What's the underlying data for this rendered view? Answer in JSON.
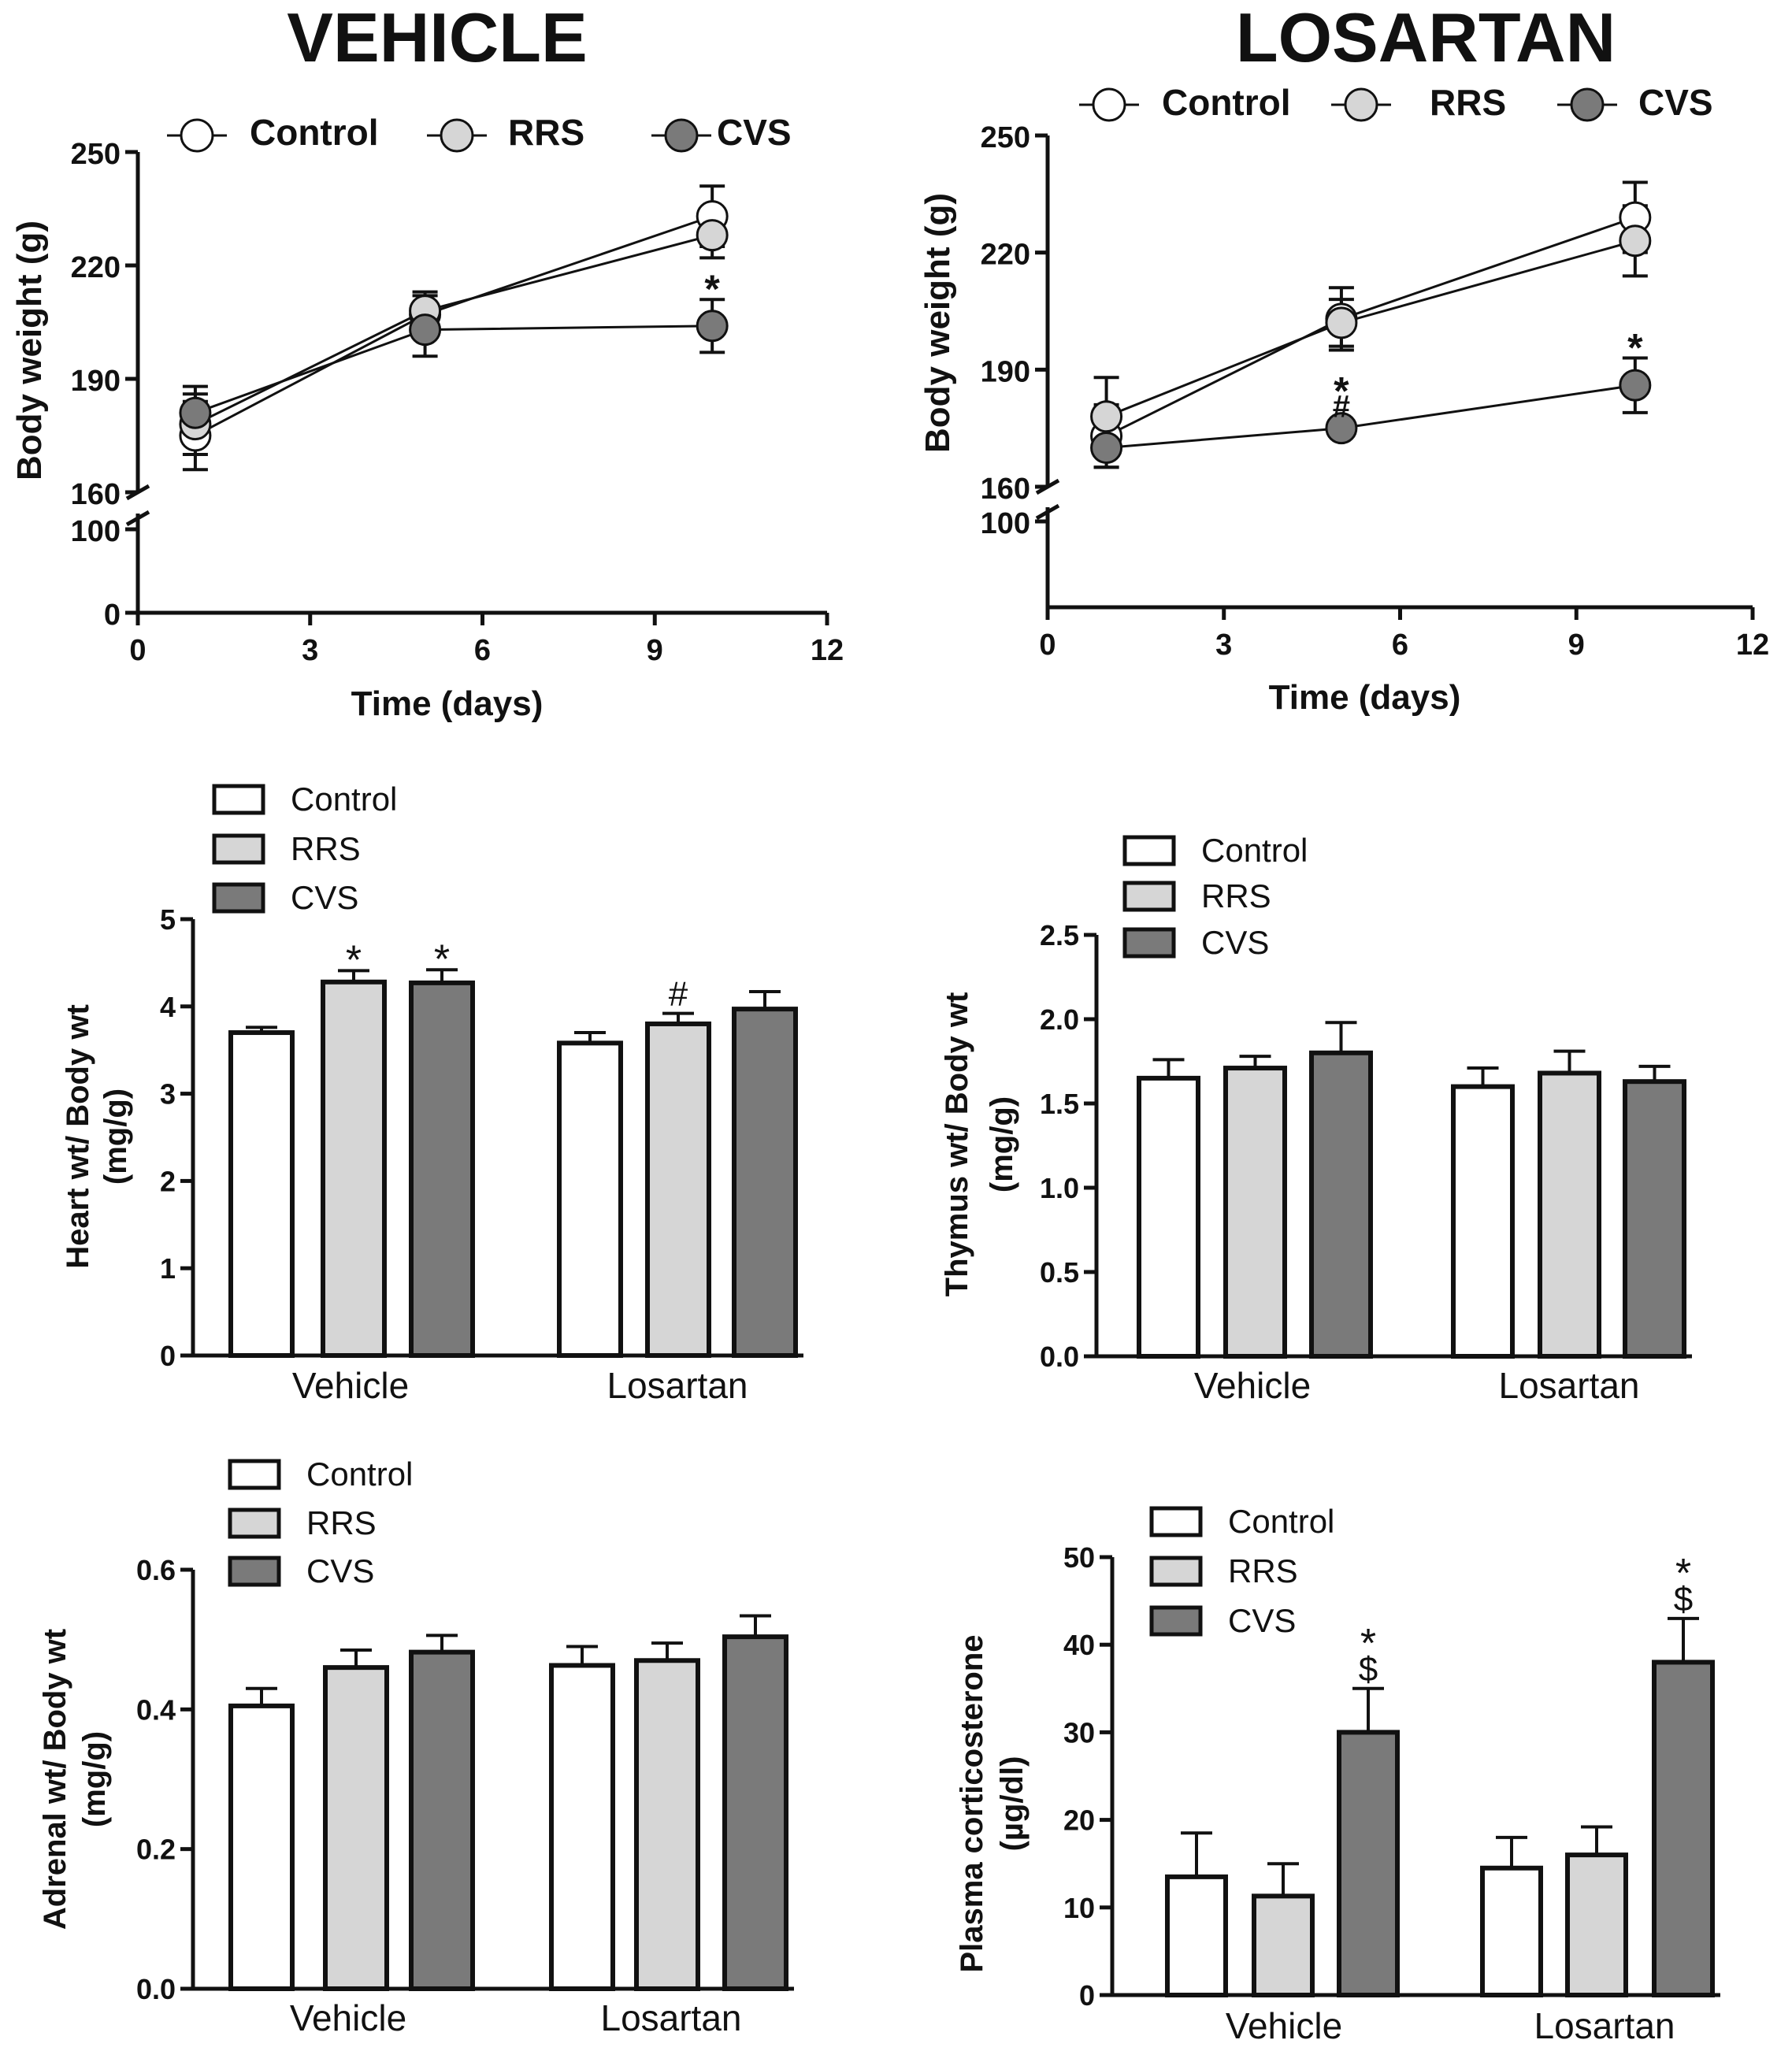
{
  "colors": {
    "Control": "#ffffff",
    "RRS": "#d6d6d6",
    "CVS": "#7a7a7a",
    "ink": "#111111"
  },
  "legend_labels": [
    "Control",
    "RRS",
    "CVS"
  ],
  "chart_data": [
    {
      "id": "bw-vehicle",
      "type": "line",
      "title": "VEHICLE",
      "xlabel": "Time (days)",
      "ylabel": "Body weight (g)",
      "xlim": [
        0,
        12
      ],
      "xticks": [
        "0",
        "3",
        "6",
        "9",
        "12"
      ],
      "ylim_upper": [
        160,
        250
      ],
      "yticks_upper": [
        "160",
        "190",
        "220",
        "250"
      ],
      "ylim_lower": [
        0,
        100
      ],
      "yticks_lower": [
        "0",
        "100"
      ],
      "x": [
        1,
        5,
        10
      ],
      "series": [
        {
          "name": "Control",
          "values": [
            175,
            207,
            233
          ],
          "errors": [
            9,
            5,
            8
          ],
          "annotations": [
            "",
            "",
            ""
          ]
        },
        {
          "name": "RRS",
          "values": [
            178,
            208,
            228
          ],
          "errors": [
            8,
            5,
            6
          ],
          "annotations": [
            "",
            "",
            ""
          ]
        },
        {
          "name": "CVS",
          "values": [
            181,
            203,
            204
          ],
          "errors": [
            7,
            7,
            7
          ],
          "annotations": [
            "",
            "",
            "*"
          ]
        }
      ]
    },
    {
      "id": "bw-losartan",
      "type": "line",
      "title": "LOSARTAN",
      "xlabel": "Time (days)",
      "ylabel": "Body weight (g)",
      "xlim": [
        0,
        12
      ],
      "xticks": [
        "0",
        "3",
        "6",
        "9",
        "12"
      ],
      "ylim_upper": [
        160,
        250
      ],
      "yticks_upper": [
        "160",
        "190",
        "220",
        "250"
      ],
      "ylim_lower": [
        0,
        100
      ],
      "yticks_lower": [
        "100"
      ],
      "x": [
        1,
        5,
        10
      ],
      "series": [
        {
          "name": "Control",
          "values": [
            173,
            203,
            229
          ],
          "errors": [
            8,
            8,
            9
          ],
          "annotations": [
            "",
            "",
            ""
          ]
        },
        {
          "name": "RRS",
          "values": [
            178,
            202,
            223
          ],
          "errors": [
            10,
            6,
            9
          ],
          "annotations": [
            "",
            "",
            ""
          ]
        },
        {
          "name": "CVS",
          "values": [
            170,
            175,
            186
          ],
          "errors": [
            5,
            0,
            7
          ],
          "annotations": [
            "",
            "*#",
            "*"
          ]
        }
      ]
    },
    {
      "id": "heart",
      "type": "bar",
      "ylabel_lines": [
        "Heart wt/ Body wt",
        "(mg/g)"
      ],
      "ylim": [
        0,
        5
      ],
      "yticks": [
        "0",
        "1",
        "2",
        "3",
        "4",
        "5"
      ],
      "groups": [
        "Vehicle",
        "Losartan"
      ],
      "series": [
        {
          "name": "Control",
          "values": [
            3.7,
            3.58
          ],
          "errors": [
            0.06,
            0.12
          ],
          "annotations": [
            "",
            ""
          ]
        },
        {
          "name": "RRS",
          "values": [
            4.28,
            3.8
          ],
          "errors": [
            0.13,
            0.12
          ],
          "annotations": [
            "*",
            "#"
          ]
        },
        {
          "name": "CVS",
          "values": [
            4.27,
            3.97
          ],
          "errors": [
            0.15,
            0.2
          ],
          "annotations": [
            "*",
            ""
          ]
        }
      ]
    },
    {
      "id": "thymus",
      "type": "bar",
      "ylabel_lines": [
        "Thymus wt/ Body wt",
        "(mg/g)"
      ],
      "ylim": [
        0,
        2.5
      ],
      "yticks": [
        "0.0",
        "0.5",
        "1.0",
        "1.5",
        "2.0",
        "2.5"
      ],
      "groups": [
        "Vehicle",
        "Losartan"
      ],
      "series": [
        {
          "name": "Control",
          "values": [
            1.65,
            1.6
          ],
          "errors": [
            0.11,
            0.11
          ],
          "annotations": [
            "",
            ""
          ]
        },
        {
          "name": "RRS",
          "values": [
            1.71,
            1.68
          ],
          "errors": [
            0.07,
            0.13
          ],
          "annotations": [
            "",
            ""
          ]
        },
        {
          "name": "CVS",
          "values": [
            1.8,
            1.63
          ],
          "errors": [
            0.18,
            0.09
          ],
          "annotations": [
            "",
            ""
          ]
        }
      ]
    },
    {
      "id": "adrenal",
      "type": "bar",
      "ylabel_lines": [
        "Adrenal wt/ Body wt",
        "(mg/g)"
      ],
      "ylim": [
        0,
        0.6
      ],
      "yticks": [
        "0.0",
        "0.2",
        "0.4",
        "0.6"
      ],
      "groups": [
        "Vehicle",
        "Losartan"
      ],
      "series": [
        {
          "name": "Control",
          "values": [
            0.405,
            0.463
          ],
          "errors": [
            0.025,
            0.027
          ],
          "annotations": [
            "",
            ""
          ]
        },
        {
          "name": "RRS",
          "values": [
            0.46,
            0.47
          ],
          "errors": [
            0.025,
            0.025
          ],
          "annotations": [
            "",
            ""
          ]
        },
        {
          "name": "CVS",
          "values": [
            0.482,
            0.504
          ],
          "errors": [
            0.024,
            0.03
          ],
          "annotations": [
            "",
            ""
          ]
        }
      ]
    },
    {
      "id": "corticosterone",
      "type": "bar",
      "ylabel_lines": [
        "Plasma corticosterone",
        "(µg/dl)"
      ],
      "ylim": [
        0,
        50
      ],
      "yticks": [
        "0",
        "10",
        "20",
        "30",
        "40",
        "50"
      ],
      "groups": [
        "Vehicle",
        "Losartan"
      ],
      "series": [
        {
          "name": "Control",
          "values": [
            13.5,
            14.5
          ],
          "errors": [
            5.0,
            3.5
          ],
          "annotations": [
            "",
            ""
          ]
        },
        {
          "name": "RRS",
          "values": [
            11.3,
            16.0
          ],
          "errors": [
            3.7,
            3.2
          ],
          "annotations": [
            "",
            ""
          ]
        },
        {
          "name": "CVS",
          "values": [
            30.0,
            38.0
          ],
          "errors": [
            5.0,
            5.0
          ],
          "annotations": [
            "*$",
            "*$"
          ]
        }
      ]
    }
  ]
}
